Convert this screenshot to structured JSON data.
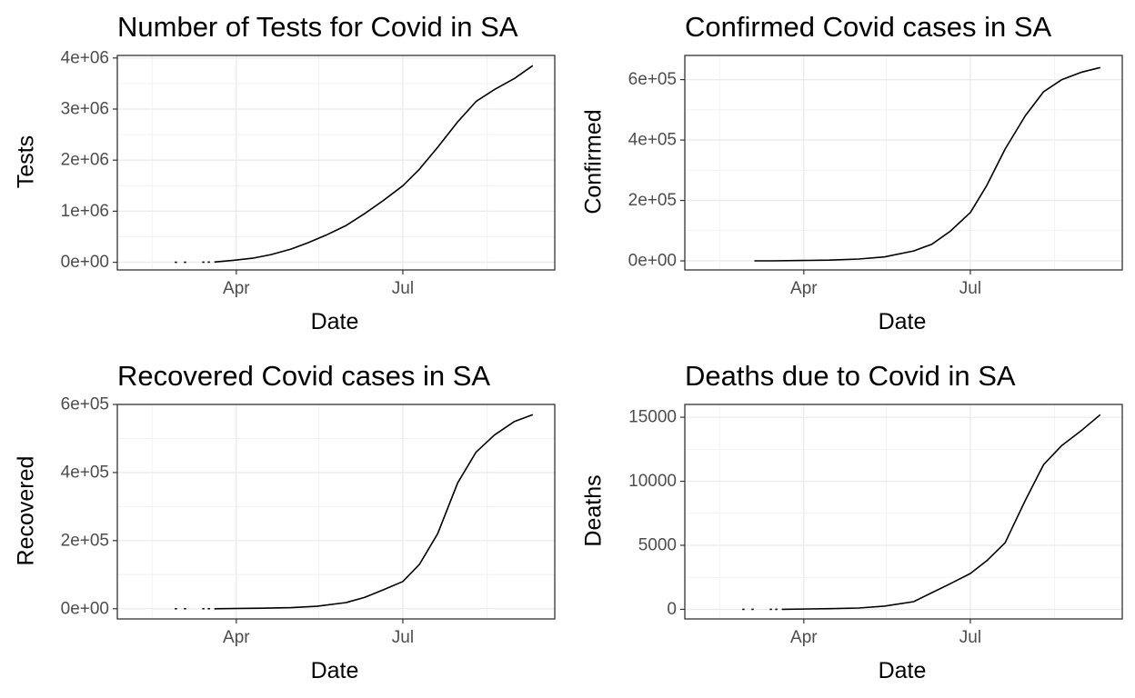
{
  "chart_data": [
    {
      "type": "line",
      "title": "Number of Tests for Covid in SA",
      "xlabel": "Date",
      "ylabel": "Tests",
      "xticks": [
        "Apr",
        "Jul"
      ],
      "yticks": [
        "0e+00",
        "1e+06",
        "2e+06",
        "3e+06",
        "4e+06"
      ],
      "ytick_values": [
        0,
        1000000,
        2000000,
        3000000,
        4000000
      ],
      "ylim": [
        -150000,
        4050000
      ],
      "xlim": [
        "2020-01-27",
        "2020-09-22"
      ],
      "grid": true,
      "color": "#000000",
      "sparse_points": [
        {
          "x": "2020-02-28",
          "y": 200
        },
        {
          "x": "2020-03-04",
          "y": 500
        },
        {
          "x": "2020-03-14",
          "y": 2000
        },
        {
          "x": "2020-03-17",
          "y": 3000
        }
      ],
      "series": [
        {
          "x": [
            "2020-03-20",
            "2020-03-31",
            "2020-04-10",
            "2020-04-20",
            "2020-05-01",
            "2020-05-10",
            "2020-05-20",
            "2020-05-31",
            "2020-06-10",
            "2020-06-20",
            "2020-07-01",
            "2020-07-10",
            "2020-07-20",
            "2020-07-31",
            "2020-08-10",
            "2020-08-20",
            "2020-08-31",
            "2020-09-10"
          ],
          "y": [
            5000,
            40000,
            80000,
            150000,
            260000,
            380000,
            530000,
            720000,
            950000,
            1200000,
            1500000,
            1820000,
            2250000,
            2750000,
            3150000,
            3380000,
            3600000,
            3850000
          ]
        }
      ]
    },
    {
      "type": "line",
      "title": "Confirmed Covid cases in SA",
      "xlabel": "Date",
      "ylabel": "Confirmed",
      "xticks": [
        "Apr",
        "Jul"
      ],
      "yticks": [
        "0e+00",
        "2e+05",
        "4e+05",
        "6e+05"
      ],
      "ytick_values": [
        0,
        200000,
        400000,
        600000
      ],
      "ylim": [
        -30000,
        680000
      ],
      "xlim": [
        "2020-01-27",
        "2020-09-22"
      ],
      "grid": true,
      "color": "#000000",
      "sparse_points": [],
      "series": [
        {
          "x": [
            "2020-03-05",
            "2020-03-15",
            "2020-03-31",
            "2020-04-15",
            "2020-05-01",
            "2020-05-15",
            "2020-05-31",
            "2020-06-10",
            "2020-06-20",
            "2020-07-01",
            "2020-07-10",
            "2020-07-20",
            "2020-07-31",
            "2020-08-10",
            "2020-08-20",
            "2020-08-31",
            "2020-09-10"
          ],
          "y": [
            0,
            50,
            1300,
            2500,
            6000,
            13000,
            33000,
            55000,
            98000,
            160000,
            250000,
            370000,
            480000,
            560000,
            600000,
            625000,
            640000
          ]
        }
      ]
    },
    {
      "type": "line",
      "title": "Recovered Covid cases in SA",
      "xlabel": "Date",
      "ylabel": "Recovered",
      "xticks": [
        "Apr",
        "Jul"
      ],
      "yticks": [
        "0e+00",
        "2e+05",
        "4e+05",
        "6e+05"
      ],
      "ytick_values": [
        0,
        200000,
        400000,
        600000
      ],
      "ylim": [
        -30000,
        600000
      ],
      "xlim": [
        "2020-01-27",
        "2020-09-22"
      ],
      "grid": true,
      "color": "#000000",
      "sparse_points": [
        {
          "x": "2020-02-28",
          "y": 0
        },
        {
          "x": "2020-03-04",
          "y": 0
        },
        {
          "x": "2020-03-14",
          "y": 0
        },
        {
          "x": "2020-03-17",
          "y": 0
        }
      ],
      "series": [
        {
          "x": [
            "2020-03-20",
            "2020-04-15",
            "2020-05-01",
            "2020-05-15",
            "2020-05-31",
            "2020-06-10",
            "2020-06-20",
            "2020-07-01",
            "2020-07-10",
            "2020-07-20",
            "2020-07-31",
            "2020-08-10",
            "2020-08-20",
            "2020-08-31",
            "2020-09-10"
          ],
          "y": [
            0,
            1500,
            3000,
            7000,
            18000,
            33000,
            55000,
            80000,
            130000,
            220000,
            370000,
            460000,
            510000,
            550000,
            570000
          ]
        }
      ]
    },
    {
      "type": "line",
      "title": "Deaths due to Covid in SA",
      "xlabel": "Date",
      "ylabel": "Deaths",
      "xticks": [
        "Apr",
        "Jul"
      ],
      "yticks": [
        "0",
        "5000",
        "10000",
        "15000"
      ],
      "ytick_values": [
        0,
        5000,
        10000,
        15000
      ],
      "ylim": [
        -750,
        16000
      ],
      "xlim": [
        "2020-01-27",
        "2020-09-22"
      ],
      "grid": true,
      "color": "#000000",
      "sparse_points": [
        {
          "x": "2020-02-28",
          "y": 0
        },
        {
          "x": "2020-03-04",
          "y": 0
        },
        {
          "x": "2020-03-14",
          "y": 0
        },
        {
          "x": "2020-03-17",
          "y": 0
        }
      ],
      "series": [
        {
          "x": [
            "2020-03-20",
            "2020-04-15",
            "2020-05-01",
            "2020-05-15",
            "2020-05-31",
            "2020-06-10",
            "2020-06-20",
            "2020-07-01",
            "2020-07-10",
            "2020-07-20",
            "2020-07-31",
            "2020-08-10",
            "2020-08-20",
            "2020-08-31",
            "2020-09-10"
          ],
          "y": [
            0,
            50,
            100,
            250,
            600,
            1300,
            2000,
            2800,
            3800,
            5200,
            8500,
            11300,
            12800,
            14000,
            15200
          ]
        }
      ]
    }
  ]
}
